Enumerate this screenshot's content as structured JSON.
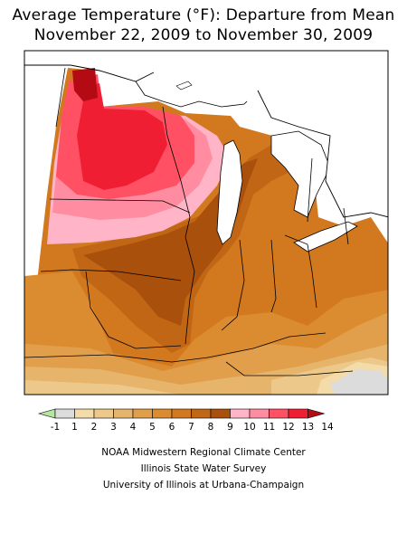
{
  "title": {
    "line1": "Average Temperature (°F): Departure from Mean",
    "line2": "November 22, 2009 to November 30, 2009"
  },
  "legend": {
    "bins": [
      {
        "label": "-1",
        "color": "#b4e6a0"
      },
      {
        "label": "1",
        "color": "#dcdcdc"
      },
      {
        "label": "2",
        "color": "#f3dcaa"
      },
      {
        "label": "3",
        "color": "#ecc98a"
      },
      {
        "label": "4",
        "color": "#e6b46a"
      },
      {
        "label": "5",
        "color": "#e19f4c"
      },
      {
        "label": "6",
        "color": "#dc8c30"
      },
      {
        "label": "7",
        "color": "#d2781e"
      },
      {
        "label": "8",
        "color": "#c06614"
      },
      {
        "label": "9",
        "color": "#a8500c"
      },
      {
        "label": "10",
        "color": "#ffb4c8"
      },
      {
        "label": "11",
        "color": "#ff8ca0"
      },
      {
        "label": "12",
        "color": "#ff5064"
      },
      {
        "label": "13",
        "color": "#f01e32"
      },
      {
        "label": "14",
        "color": "#b40a14"
      }
    ]
  },
  "credits": {
    "line1": "NOAA Midwestern Regional Climate Center",
    "line2": "Illinois State Water Survey",
    "line3": "University of Illinois at Urbana-Champaign"
  }
}
